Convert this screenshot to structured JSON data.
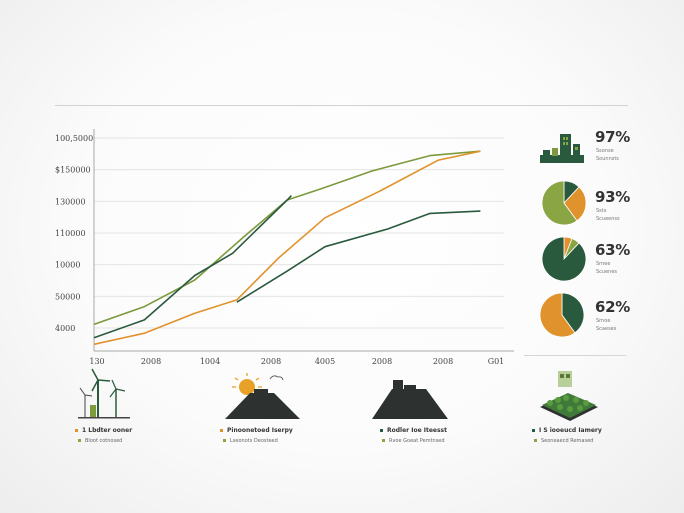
{
  "chart_data": [
    {
      "type": "line",
      "title": "",
      "xlabel": "",
      "ylabel": "",
      "y_tick_labels": [
        "100,5000",
        "$150000",
        "130000",
        "110000",
        "10000",
        "50000",
        "4000"
      ],
      "x_tick_labels": [
        "130",
        "2008",
        "1004",
        "2008",
        "4005",
        "2008",
        "2008",
        "G01"
      ],
      "grid": true,
      "legend": "none",
      "series": [
        {
          "color": "#7d9a3c",
          "points": [
            [
              0.0,
              0.12
            ],
            [
              0.12,
              0.2
            ],
            [
              0.24,
              0.32
            ],
            [
              0.36,
              0.52
            ],
            [
              0.46,
              0.68
            ],
            [
              0.54,
              0.73
            ],
            [
              0.66,
              0.81
            ],
            [
              0.8,
              0.88
            ],
            [
              0.92,
              0.9
            ]
          ]
        },
        {
          "color": "#e0922c",
          "points": [
            [
              0.0,
              0.03
            ],
            [
              0.12,
              0.08
            ],
            [
              0.24,
              0.17
            ],
            [
              0.34,
              0.23
            ],
            [
              0.44,
              0.42
            ],
            [
              0.55,
              0.6
            ],
            [
              0.68,
              0.72
            ],
            [
              0.82,
              0.86
            ],
            [
              0.92,
              0.9
            ]
          ]
        },
        {
          "color": "#2a5a3e",
          "points": [
            [
              0.0,
              0.06
            ],
            [
              0.12,
              0.14
            ],
            [
              0.24,
              0.34
            ],
            [
              0.33,
              0.44
            ],
            [
              0.46,
              0.68
            ],
            [
              0.47,
              0.7
            ]
          ]
        },
        {
          "color": "#2a5a3e",
          "points": [
            [
              0.34,
              0.22
            ],
            [
              0.46,
              0.36
            ],
            [
              0.55,
              0.47
            ],
            [
              0.7,
              0.55
            ],
            [
              0.8,
              0.62
            ],
            [
              0.92,
              0.63
            ]
          ]
        }
      ]
    },
    {
      "type": "pie",
      "panels": [
        {
          "icon": "building-icon",
          "value": "97%",
          "slices": [],
          "colors": [
            "#2a5a3e",
            "#7d9a3c"
          ]
        },
        {
          "icon": "pie-icon",
          "value": "93%",
          "slices": [
            [
              0.12,
              "#2a5a3e"
            ],
            [
              0.28,
              "#e0922c"
            ],
            [
              0.6,
              "#8aa543"
            ]
          ]
        },
        {
          "icon": "pie-icon",
          "value": "63%",
          "slices": [
            [
              0.06,
              "#e0922c"
            ],
            [
              0.06,
              "#8aa543"
            ],
            [
              0.88,
              "#2a5a3e"
            ]
          ]
        },
        {
          "icon": "pie-icon",
          "value": "62%",
          "slices": [
            [
              0.4,
              "#2a5a3e"
            ],
            [
              0.6,
              "#e0922c"
            ]
          ]
        }
      ]
    }
  ],
  "gauges": [
    {
      "value": "97%",
      "line1": "Ssonse",
      "line2": "Sounnsts"
    },
    {
      "value": "93%",
      "line1": "Ssts",
      "line2": "Scueenss"
    },
    {
      "value": "63%",
      "line1": "Srnee",
      "line2": "Scuenes"
    },
    {
      "value": "62%",
      "line1": "Srnoe",
      "line2": "Scaeses"
    }
  ],
  "bottom_items": [
    {
      "icon": "wind-turbine-icon",
      "caption": "1 Lbdter ooner",
      "subcaption": "Bloot cotnosed",
      "bullet_color": "#e0922c"
    },
    {
      "icon": "solar-sun-icon",
      "caption": "Pinoonetoed Iserpy",
      "subcaption": "Lseonots Deosteed",
      "bullet_color": "#e0922c"
    },
    {
      "icon": "factory-icon",
      "caption": "Rodler Ioe Iteesst",
      "subcaption": "Rvoe Goeat Pemtnsed",
      "bullet_color": "#2a5a3e"
    },
    {
      "icon": "green-roof-icon",
      "caption": "I S iooeucd Iamery",
      "subcaption": "Seoneaecd Remased",
      "bullet_color": "#2a5a3e"
    }
  ]
}
